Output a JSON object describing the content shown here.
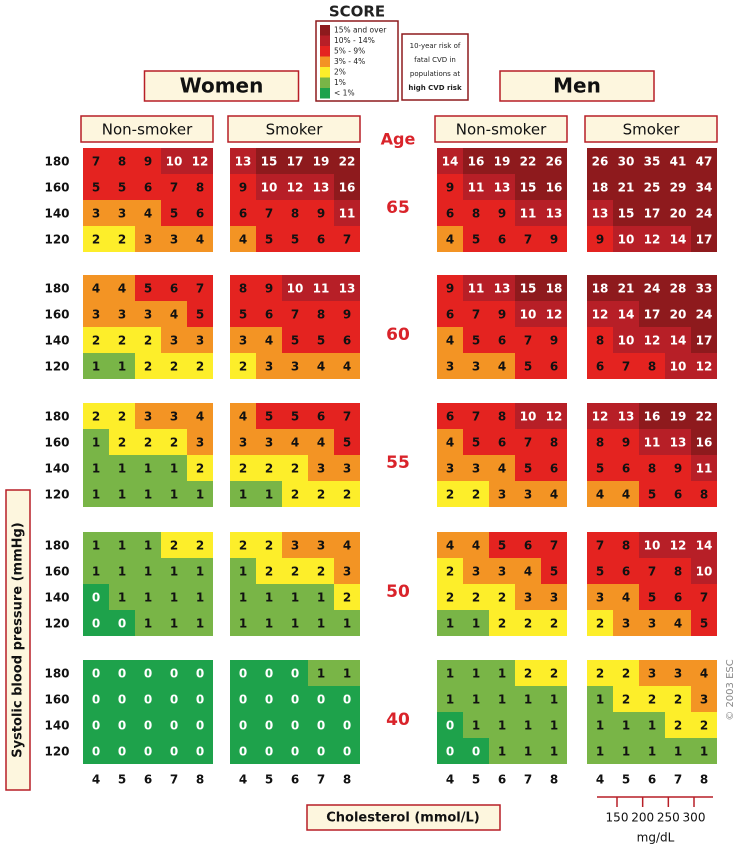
{
  "logo": "SCORE",
  "legend": {
    "items": [
      {
        "label": "15% and over",
        "min": 15,
        "color": "#8e1a1d",
        "text": "#fff"
      },
      {
        "label": "10% - 14%",
        "min": 10,
        "color": "#b71f27",
        "text": "#fff"
      },
      {
        "label": "5% - 9%",
        "min": 5,
        "color": "#e42320",
        "text": "#111"
      },
      {
        "label": "3% - 4%",
        "min": 3,
        "color": "#f39424",
        "text": "#111"
      },
      {
        "label": "2%",
        "min": 2,
        "color": "#fdee2a",
        "text": "#111"
      },
      {
        "label": "1%",
        "min": 1,
        "color": "#79b547",
        "text": "#111"
      },
      {
        "label": "< 1%",
        "min": 0,
        "color": "#1ea24b",
        "text": "#fff"
      }
    ]
  },
  "note": {
    "lines": [
      "10-year risk of",
      "fatal CVD in",
      "populations at",
      "high CVD risk"
    ]
  },
  "age_label": "Age",
  "ages": [
    65,
    60,
    55,
    50,
    40
  ],
  "sbp": [
    180,
    160,
    140,
    120
  ],
  "cholesterol": [
    4,
    5,
    6,
    7,
    8
  ],
  "y_axis_label": "Systolic blood pressure (mmHg)",
  "x_axis_label": "Cholesterol (mmol/L)",
  "mgdl": {
    "ticks": [
      150,
      200,
      250,
      300
    ],
    "unit": "mg/dL"
  },
  "copyright": "© 2003 ESC",
  "sexes": [
    {
      "name": "Women",
      "groups": [
        {
          "name": "Non-smoker",
          "values": [
            [
              [
                7,
                8,
                9,
                10,
                12
              ],
              [
                5,
                5,
                6,
                7,
                8
              ],
              [
                3,
                3,
                4,
                5,
                6
              ],
              [
                2,
                2,
                3,
                3,
                4
              ]
            ],
            [
              [
                4,
                4,
                5,
                6,
                7
              ],
              [
                3,
                3,
                3,
                4,
                5
              ],
              [
                2,
                2,
                2,
                3,
                3
              ],
              [
                1,
                1,
                2,
                2,
                2
              ]
            ],
            [
              [
                2,
                2,
                3,
                3,
                4
              ],
              [
                1,
                2,
                2,
                2,
                3
              ],
              [
                1,
                1,
                1,
                1,
                2
              ],
              [
                1,
                1,
                1,
                1,
                1
              ]
            ],
            [
              [
                1,
                1,
                1,
                2,
                2
              ],
              [
                1,
                1,
                1,
                1,
                1
              ],
              [
                0,
                1,
                1,
                1,
                1
              ],
              [
                0,
                0,
                1,
                1,
                1
              ]
            ],
            [
              [
                0,
                0,
                0,
                0,
                0
              ],
              [
                0,
                0,
                0,
                0,
                0
              ],
              [
                0,
                0,
                0,
                0,
                0
              ],
              [
                0,
                0,
                0,
                0,
                0
              ]
            ]
          ]
        },
        {
          "name": "Smoker",
          "values": [
            [
              [
                13,
                15,
                17,
                19,
                22
              ],
              [
                9,
                10,
                12,
                13,
                16
              ],
              [
                6,
                7,
                8,
                9,
                11
              ],
              [
                4,
                5,
                5,
                6,
                7
              ]
            ],
            [
              [
                8,
                9,
                10,
                11,
                13
              ],
              [
                5,
                6,
                7,
                8,
                9
              ],
              [
                3,
                4,
                5,
                5,
                6
              ],
              [
                2,
                3,
                3,
                4,
                4
              ]
            ],
            [
              [
                4,
                5,
                5,
                6,
                7
              ],
              [
                3,
                3,
                4,
                4,
                5
              ],
              [
                2,
                2,
                2,
                3,
                3
              ],
              [
                1,
                1,
                2,
                2,
                2
              ]
            ],
            [
              [
                2,
                2,
                3,
                3,
                4
              ],
              [
                1,
                2,
                2,
                2,
                3
              ],
              [
                1,
                1,
                1,
                1,
                2
              ],
              [
                1,
                1,
                1,
                1,
                1
              ]
            ],
            [
              [
                0,
                0,
                0,
                1,
                1
              ],
              [
                0,
                0,
                0,
                0,
                0
              ],
              [
                0,
                0,
                0,
                0,
                0
              ],
              [
                0,
                0,
                0,
                0,
                0
              ]
            ]
          ]
        }
      ]
    },
    {
      "name": "Men",
      "groups": [
        {
          "name": "Non-smoker",
          "values": [
            [
              [
                14,
                16,
                19,
                22,
                26
              ],
              [
                9,
                11,
                13,
                15,
                16
              ],
              [
                6,
                8,
                9,
                11,
                13
              ],
              [
                4,
                5,
                6,
                7,
                9
              ]
            ],
            [
              [
                9,
                11,
                13,
                15,
                18
              ],
              [
                6,
                7,
                9,
                10,
                12
              ],
              [
                4,
                5,
                6,
                7,
                9
              ],
              [
                3,
                3,
                4,
                5,
                6
              ]
            ],
            [
              [
                6,
                7,
                8,
                10,
                12
              ],
              [
                4,
                5,
                6,
                7,
                8
              ],
              [
                3,
                3,
                4,
                5,
                6
              ],
              [
                2,
                2,
                3,
                3,
                4
              ]
            ],
            [
              [
                4,
                4,
                5,
                6,
                7
              ],
              [
                2,
                3,
                3,
                4,
                5
              ],
              [
                2,
                2,
                2,
                3,
                3
              ],
              [
                1,
                1,
                2,
                2,
                2
              ]
            ],
            [
              [
                1,
                1,
                1,
                2,
                2
              ],
              [
                1,
                1,
                1,
                1,
                1
              ],
              [
                0,
                1,
                1,
                1,
                1
              ],
              [
                0,
                0,
                1,
                1,
                1
              ]
            ]
          ]
        },
        {
          "name": "Smoker",
          "values": [
            [
              [
                26,
                30,
                35,
                41,
                47
              ],
              [
                18,
                21,
                25,
                29,
                34
              ],
              [
                13,
                15,
                17,
                20,
                24
              ],
              [
                9,
                10,
                12,
                14,
                17
              ]
            ],
            [
              [
                18,
                21,
                24,
                28,
                33
              ],
              [
                12,
                14,
                17,
                20,
                24
              ],
              [
                8,
                10,
                12,
                14,
                17
              ],
              [
                6,
                7,
                8,
                10,
                12
              ]
            ],
            [
              [
                12,
                13,
                16,
                19,
                22
              ],
              [
                8,
                9,
                11,
                13,
                16
              ],
              [
                5,
                6,
                8,
                9,
                11
              ],
              [
                4,
                4,
                5,
                6,
                8
              ]
            ],
            [
              [
                7,
                8,
                10,
                12,
                14
              ],
              [
                5,
                6,
                7,
                8,
                10
              ],
              [
                3,
                4,
                5,
                6,
                7
              ],
              [
                2,
                3,
                3,
                4,
                5
              ]
            ],
            [
              [
                2,
                2,
                3,
                3,
                4
              ],
              [
                1,
                2,
                2,
                2,
                3
              ],
              [
                1,
                1,
                1,
                2,
                2
              ],
              [
                1,
                1,
                1,
                1,
                1
              ]
            ]
          ]
        }
      ]
    }
  ]
}
